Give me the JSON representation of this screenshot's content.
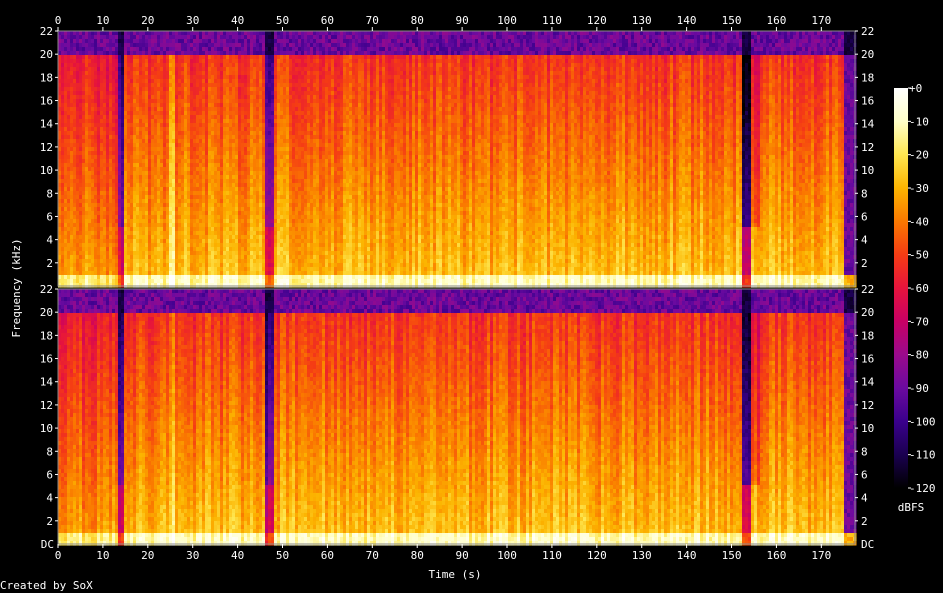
{
  "credit": "Created by SoX",
  "chart_data": {
    "type": "heatmap",
    "subtype": "spectrogram",
    "channels": 2,
    "xlabel": "Time (s)",
    "ylabel": "Frequency (kHz)",
    "xlim": [
      0,
      177.5
    ],
    "ylim": [
      0,
      22
    ],
    "x_ticks": [
      "0",
      "10",
      "20",
      "30",
      "40",
      "50",
      "60",
      "70",
      "80",
      "90",
      "100",
      "110",
      "120",
      "130",
      "140",
      "150",
      "160",
      "170"
    ],
    "y_ticks_left": [
      "22",
      "20",
      "18",
      "16",
      "14",
      "12",
      "10",
      "8",
      "6",
      "4",
      "2"
    ],
    "y_ticks_right": [
      "22",
      "20",
      "18",
      "16",
      "14",
      "12",
      "10",
      "8",
      "6",
      "4",
      "2"
    ],
    "bottom_tick_label": "DC",
    "colorbar": {
      "label": "dBFS",
      "range": [
        -120,
        0
      ],
      "tick_labels": [
        "+0",
        "-10",
        "-20",
        "-30",
        "-40",
        "-50",
        "-60",
        "-70",
        "-80",
        "-90",
        "-100",
        "-110",
        "-120"
      ],
      "colors": [
        "#000000",
        "#1a0050",
        "#3a008c",
        "#6b0aa0",
        "#9a0a8c",
        "#c80064",
        "#e6143c",
        "#f53c14",
        "#fa7800",
        "#fcb400",
        "#fee650",
        "#ffffc8",
        "#ffffff"
      ]
    },
    "highband_dropouts_s": [
      [
        13,
        14.5
      ],
      [
        45.5,
        47.5
      ],
      [
        152,
        154
      ],
      [
        175,
        177.5
      ]
    ],
    "lowpass_cutoff_khz": 20,
    "notable_segments_s": {
      "quiet_start": [
        0,
        13
      ],
      "bright_line_s": 25,
      "fade_out": [
        152,
        156
      ],
      "end": [
        175,
        177.5
      ]
    }
  }
}
